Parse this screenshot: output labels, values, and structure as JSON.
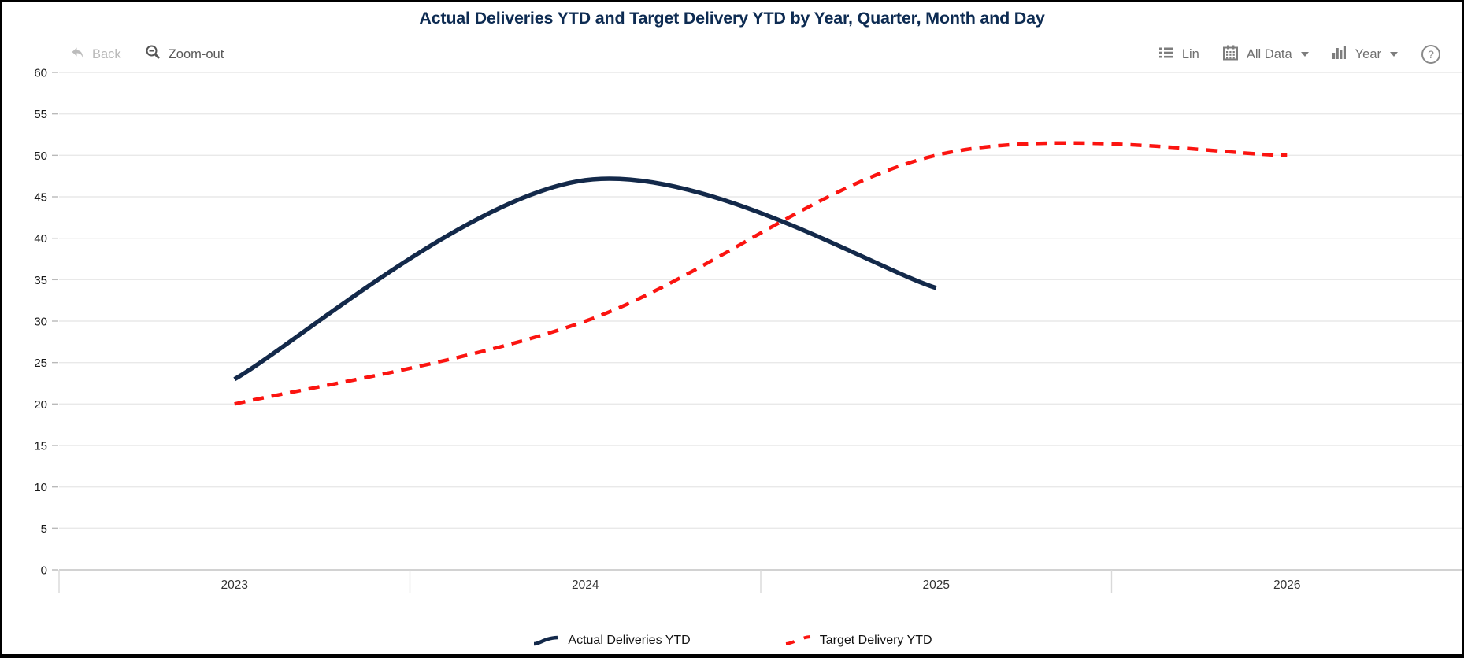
{
  "title": "Actual Deliveries YTD and Target Delivery YTD by Year, Quarter, Month and Day",
  "toolbar": {
    "back_label": "Back",
    "zoom_out_label": "Zoom-out",
    "lin_label": "Lin",
    "all_data_label": "All Data",
    "year_label": "Year",
    "help_glyph": "?"
  },
  "icons": {
    "back": "undo-arrow",
    "zoom_out": "magnifier-minus",
    "lin": "list",
    "all_data": "calendar",
    "year": "bar-chart",
    "help": "question-circle"
  },
  "colors": {
    "title": "#0d2b52",
    "actual_line": "#13294a",
    "target_line": "#fb1410",
    "gridline": "#e9e9e9",
    "axis_line": "#c3c3c3",
    "separator": "#d9d9d9",
    "y_label": "#1a1a1a",
    "x_label": "#333333",
    "toolbar_text": "#6f6f6f"
  },
  "chart_data": {
    "type": "line",
    "title": "Actual Deliveries YTD and Target Delivery YTD by Year, Quarter, Month and Day",
    "xlabel": "",
    "ylabel": "",
    "x": [
      2023,
      2024,
      2025,
      2026
    ],
    "x_axis_labels": [
      "2023",
      "2024",
      "2025",
      "2026"
    ],
    "ylim": [
      0,
      60
    ],
    "ytick_step": 5,
    "grid": "horizontal",
    "legend_position": "bottom",
    "curve": "smooth-spline",
    "series": [
      {
        "name": "Actual Deliveries YTD",
        "color": "#13294a",
        "style": "solid",
        "stroke_width": 5.5,
        "x": [
          2023,
          2024,
          2025
        ],
        "values": [
          23,
          47,
          34
        ]
      },
      {
        "name": "Target Delivery YTD",
        "color": "#fb1410",
        "style": "dashed",
        "dash": "14 10",
        "stroke_width": 4.5,
        "x": [
          2023,
          2024,
          2025,
          2026
        ],
        "values": [
          20,
          30,
          50,
          50
        ]
      }
    ]
  }
}
